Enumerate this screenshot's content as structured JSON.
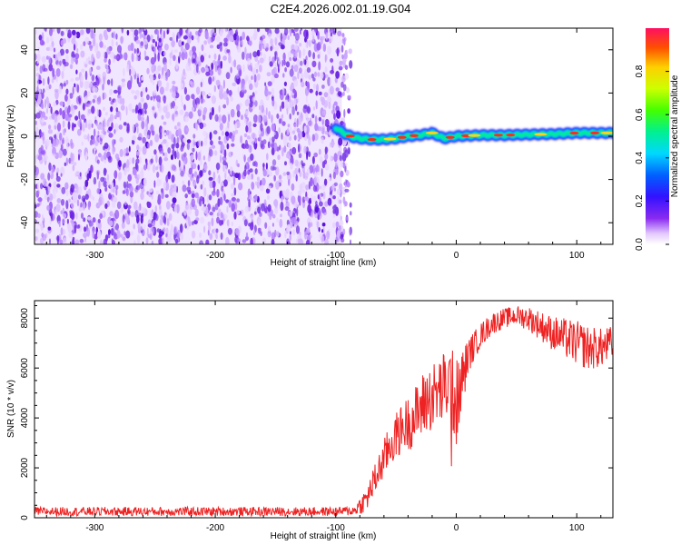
{
  "title": "C2E4.2026.002.01.19.G04",
  "chart_data": [
    {
      "type": "heatmap",
      "title": "C2E4.2026.002.01.19.G04",
      "xlabel": "Height of straight line (km)",
      "ylabel": "Frequency (Hz)",
      "xlim": [
        -350,
        130
      ],
      "ylim": [
        -50,
        50
      ],
      "xticks": [
        -300,
        -200,
        -100,
        0,
        100
      ],
      "xtick_labels": [
        "-300",
        "-200",
        "-100",
        "0",
        "100"
      ],
      "yticks": [
        -40,
        -20,
        0,
        20,
        40
      ],
      "ytick_labels": [
        "-40",
        "-20",
        "0",
        "20",
        "40"
      ],
      "noise_region_x": [
        -350,
        -95
      ],
      "signal_trace": {
        "x": [
          -100,
          -95,
          -90,
          -85,
          -80,
          -70,
          -60,
          -50,
          -40,
          -30,
          -20,
          -10,
          0,
          20,
          40,
          60,
          80,
          100,
          120,
          130
        ],
        "frequency": [
          4,
          2,
          0.5,
          -0.5,
          -1,
          -1.5,
          -1.5,
          -1,
          0,
          0.5,
          1.5,
          -1,
          0,
          0.5,
          0.5,
          0.8,
          1,
          1.5,
          1.5,
          1.5
        ]
      },
      "colorbar": {
        "label": "Normalized spectral amplitude",
        "range": [
          0,
          1
        ],
        "ticks": [
          0.0,
          0.2,
          0.4,
          0.6,
          0.8
        ],
        "tick_labels": [
          "0.0",
          "0.2",
          "0.4",
          "0.6",
          "0.8"
        ]
      }
    },
    {
      "type": "line",
      "xlabel": "Height of straight line (km)",
      "ylabel": "SNR (10 * v/v)",
      "xlim": [
        -350,
        130
      ],
      "ylim": [
        0,
        8700
      ],
      "xticks": [
        -300,
        -200,
        -100,
        0,
        100
      ],
      "xtick_labels": [
        "-300",
        "-200",
        "-100",
        "0",
        "100"
      ],
      "yticks": [
        0,
        2000,
        4000,
        6000,
        8000
      ],
      "ytick_labels": [
        "0",
        "2000",
        "4000",
        "6000",
        "8000"
      ],
      "color": "#ee2222",
      "series": [
        {
          "name": "SNR",
          "x": [
            -350,
            -300,
            -250,
            -200,
            -150,
            -100,
            -85,
            -75,
            -65,
            -55,
            -45,
            -35,
            -25,
            -15,
            -5,
            0,
            10,
            20,
            30,
            40,
            50,
            60,
            70,
            80,
            90,
            100,
            110,
            120,
            130
          ],
          "values": [
            250,
            250,
            250,
            250,
            250,
            250,
            280,
            700,
            1800,
            2900,
            3600,
            4000,
            4700,
            5000,
            5400,
            4600,
            6500,
            7300,
            7800,
            8000,
            8100,
            8000,
            7700,
            7400,
            7200,
            7000,
            6800,
            6800,
            7000
          ],
          "spread": [
            180,
            180,
            180,
            180,
            180,
            180,
            200,
            500,
            700,
            900,
            1000,
            1200,
            1400,
            1400,
            1600,
            1800,
            700,
            500,
            450,
            400,
            400,
            500,
            600,
            700,
            800,
            900,
            900,
            800,
            700
          ]
        }
      ]
    }
  ]
}
